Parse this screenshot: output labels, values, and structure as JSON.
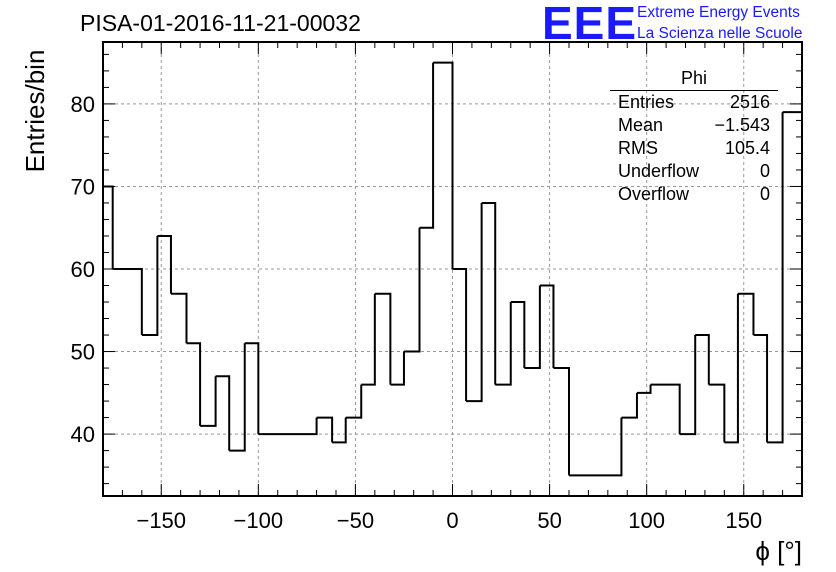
{
  "header": {
    "title": "PISA-01-2016-11-21-00032",
    "logo_text": "EEE",
    "logo_line1": "Extreme Energy Events",
    "logo_line2": "La Scienza nelle Scuole",
    "logo_color": "#1a1aff"
  },
  "stats_box": {
    "name": "Phi",
    "rows": [
      {
        "label": "Entries",
        "value": "2516"
      },
      {
        "label": "Mean",
        "value": "−1.543"
      },
      {
        "label": "RMS",
        "value": "105.4"
      },
      {
        "label": "Underflow",
        "value": "0"
      },
      {
        "label": "Overflow",
        "value": "0"
      }
    ]
  },
  "chart_data": {
    "type": "histogram",
    "title": "PISA-01-2016-11-21-00032",
    "xlabel": "ϕ [°]",
    "ylabel": "Entries/bin",
    "xlim": [
      -180,
      180
    ],
    "ylim": [
      32.5,
      87.5
    ],
    "grid": true,
    "x_ticks": [
      -150,
      -100,
      -50,
      0,
      50,
      100,
      150
    ],
    "x_tick_labels": [
      "−150",
      "−100",
      "−50",
      "0",
      "50",
      "100",
      "150"
    ],
    "y_ticks": [
      40,
      50,
      60,
      70,
      80
    ],
    "y_tick_labels": [
      "40",
      "50",
      "60",
      "70",
      "80"
    ],
    "bin_edges": [
      -180,
      -175,
      -160,
      -152,
      -145,
      -137,
      -130,
      -122,
      -115,
      -107,
      -100,
      -70,
      -62,
      -55,
      -47,
      -40,
      -32,
      -25,
      -17,
      -10,
      0,
      7,
      15,
      22,
      30,
      37,
      45,
      52,
      60,
      87,
      95,
      102,
      117,
      125,
      132,
      140,
      147,
      155,
      162,
      170,
      180
    ],
    "values": [
      70,
      60,
      52,
      64,
      57,
      51,
      41,
      47,
      38,
      51,
      40,
      42,
      39,
      42,
      46,
      57,
      46,
      50,
      65,
      85,
      60,
      44,
      68,
      46,
      56,
      48,
      58,
      48,
      35,
      42,
      45,
      46,
      40,
      52,
      46,
      39,
      57,
      52,
      39,
      79
    ]
  }
}
